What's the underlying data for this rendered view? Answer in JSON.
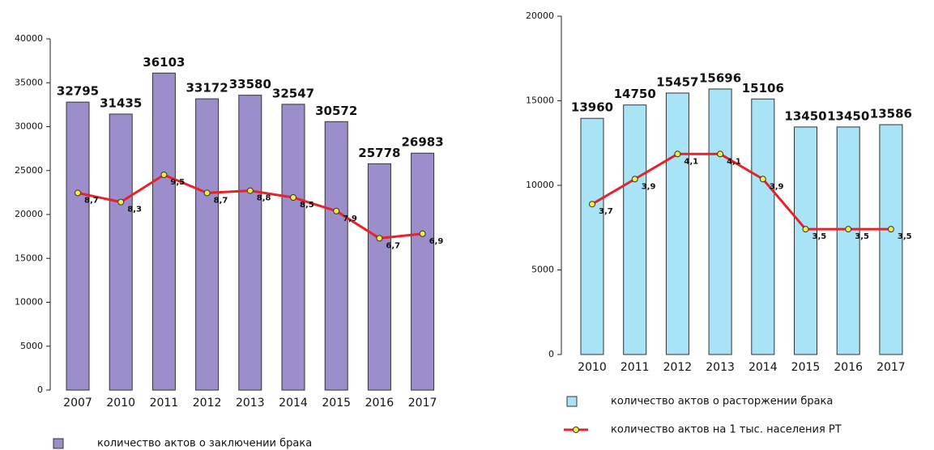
{
  "chart_data": [
    {
      "type": "bar",
      "categories": [
        "2007",
        "2010",
        "2011",
        "2012",
        "2013",
        "2014",
        "2015",
        "2016",
        "2017"
      ],
      "series": [
        {
          "name": "количество актов о заключении брака",
          "color": "#9c8dcb",
          "values": [
            32795,
            31435,
            36103,
            33172,
            33580,
            32547,
            30572,
            25778,
            26983
          ]
        },
        {
          "type": "line",
          "axis": "y2",
          "color": "#e5232a",
          "values": [
            8.7,
            8.3,
            9.5,
            8.7,
            8.8,
            8.5,
            7.9,
            6.7,
            6.9
          ],
          "value_labels": [
            "8,7",
            "8,3",
            "9,5",
            "8,7",
            "8,8",
            "8,5",
            "7,9",
            "6,7",
            "6,9"
          ]
        }
      ],
      "ylim": [
        0,
        40000
      ],
      "yticks": [
        0,
        5000,
        10000,
        15000,
        20000,
        25000,
        30000,
        35000,
        40000
      ],
      "y2lim": [
        0,
        15.5
      ]
    },
    {
      "type": "bar",
      "categories": [
        "2010",
        "2011",
        "2012",
        "2013",
        "2014",
        "2015",
        "2016",
        "2017"
      ],
      "series": [
        {
          "name": "количество актов о расторжении брака",
          "color": "#a8e4f5",
          "values": [
            13960,
            14750,
            15457,
            15696,
            15106,
            13450,
            13450,
            13586
          ]
        },
        {
          "name": "количество актов на 1 тыс. населения РТ",
          "type": "line",
          "axis": "y2",
          "color": "#e5232a",
          "values": [
            3.7,
            3.9,
            4.1,
            4.1,
            3.9,
            3.5,
            3.5,
            3.5
          ],
          "value_labels": [
            "3,7",
            "3,9",
            "4,1",
            "4,1",
            "3,9",
            "3,5",
            "3,5",
            "3,5"
          ]
        }
      ],
      "ylim": [
        0,
        20000
      ],
      "yticks": [
        0,
        5000,
        10000,
        15000,
        20000
      ],
      "y2lim": [
        2.5,
        5.2
      ]
    }
  ]
}
